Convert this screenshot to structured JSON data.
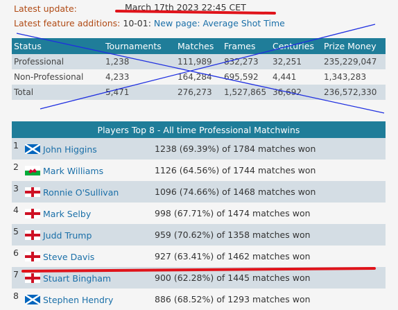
{
  "header": {
    "latest_update_label": "Latest update:",
    "latest_update_value": "March 17th 2023 22:45 CET",
    "feature_label": "Latest feature additions:",
    "feature_date": "10-01:",
    "feature_link": "New page: Average Shot Time"
  },
  "stats_table": {
    "headers": [
      "Status",
      "Tournaments",
      "Matches",
      "Frames",
      "Centuries",
      "Prize Money"
    ],
    "rows": [
      [
        "Professional",
        "1,238",
        "111,989",
        "832,273",
        "32,251",
        "235,229,047"
      ],
      [
        "Non-Professional",
        "4,233",
        "164,284",
        "695,592",
        "4,441",
        "1,343,283"
      ],
      [
        "Total",
        "5,471",
        "276,273",
        "1,527,865",
        "36,692",
        "236,572,330"
      ]
    ]
  },
  "players_table": {
    "title": "Players Top 8 - All time Professional Matchwins",
    "rows": [
      {
        "rank": "1",
        "name": "John Higgins",
        "flag": "scotland-flag-icon",
        "wins": "1238 (69.39%) of 1784 matches won"
      },
      {
        "rank": "2",
        "name": "Mark Williams",
        "flag": "wales-flag-icon",
        "wins": "1126 (64.56%) of 1744 matches won"
      },
      {
        "rank": "3",
        "name": "Ronnie O'Sullivan",
        "flag": "england-flag-icon",
        "wins": "1096 (74.66%) of 1468 matches won"
      },
      {
        "rank": "4",
        "name": "Mark Selby",
        "flag": "england-flag-icon",
        "wins": "998 (67.71%) of 1474 matches won"
      },
      {
        "rank": "5",
        "name": "Judd Trump",
        "flag": "england-flag-icon",
        "wins": "959 (70.62%) of 1358 matches won"
      },
      {
        "rank": "6",
        "name": "Steve Davis",
        "flag": "england-flag-icon",
        "wins": "927 (63.41%) of 1462 matches won"
      },
      {
        "rank": "7",
        "name": "Stuart Bingham",
        "flag": "england-flag-icon",
        "wins": "900 (62.28%) of 1445 matches won"
      },
      {
        "rank": "8",
        "name": "Stephen Hendry",
        "flag": "scotland-flag-icon",
        "wins": "886 (68.52%) of 1293 matches won"
      }
    ]
  },
  "annotations": {
    "underline_color": "#e0131a",
    "cross_color": "#1f2fe0"
  }
}
